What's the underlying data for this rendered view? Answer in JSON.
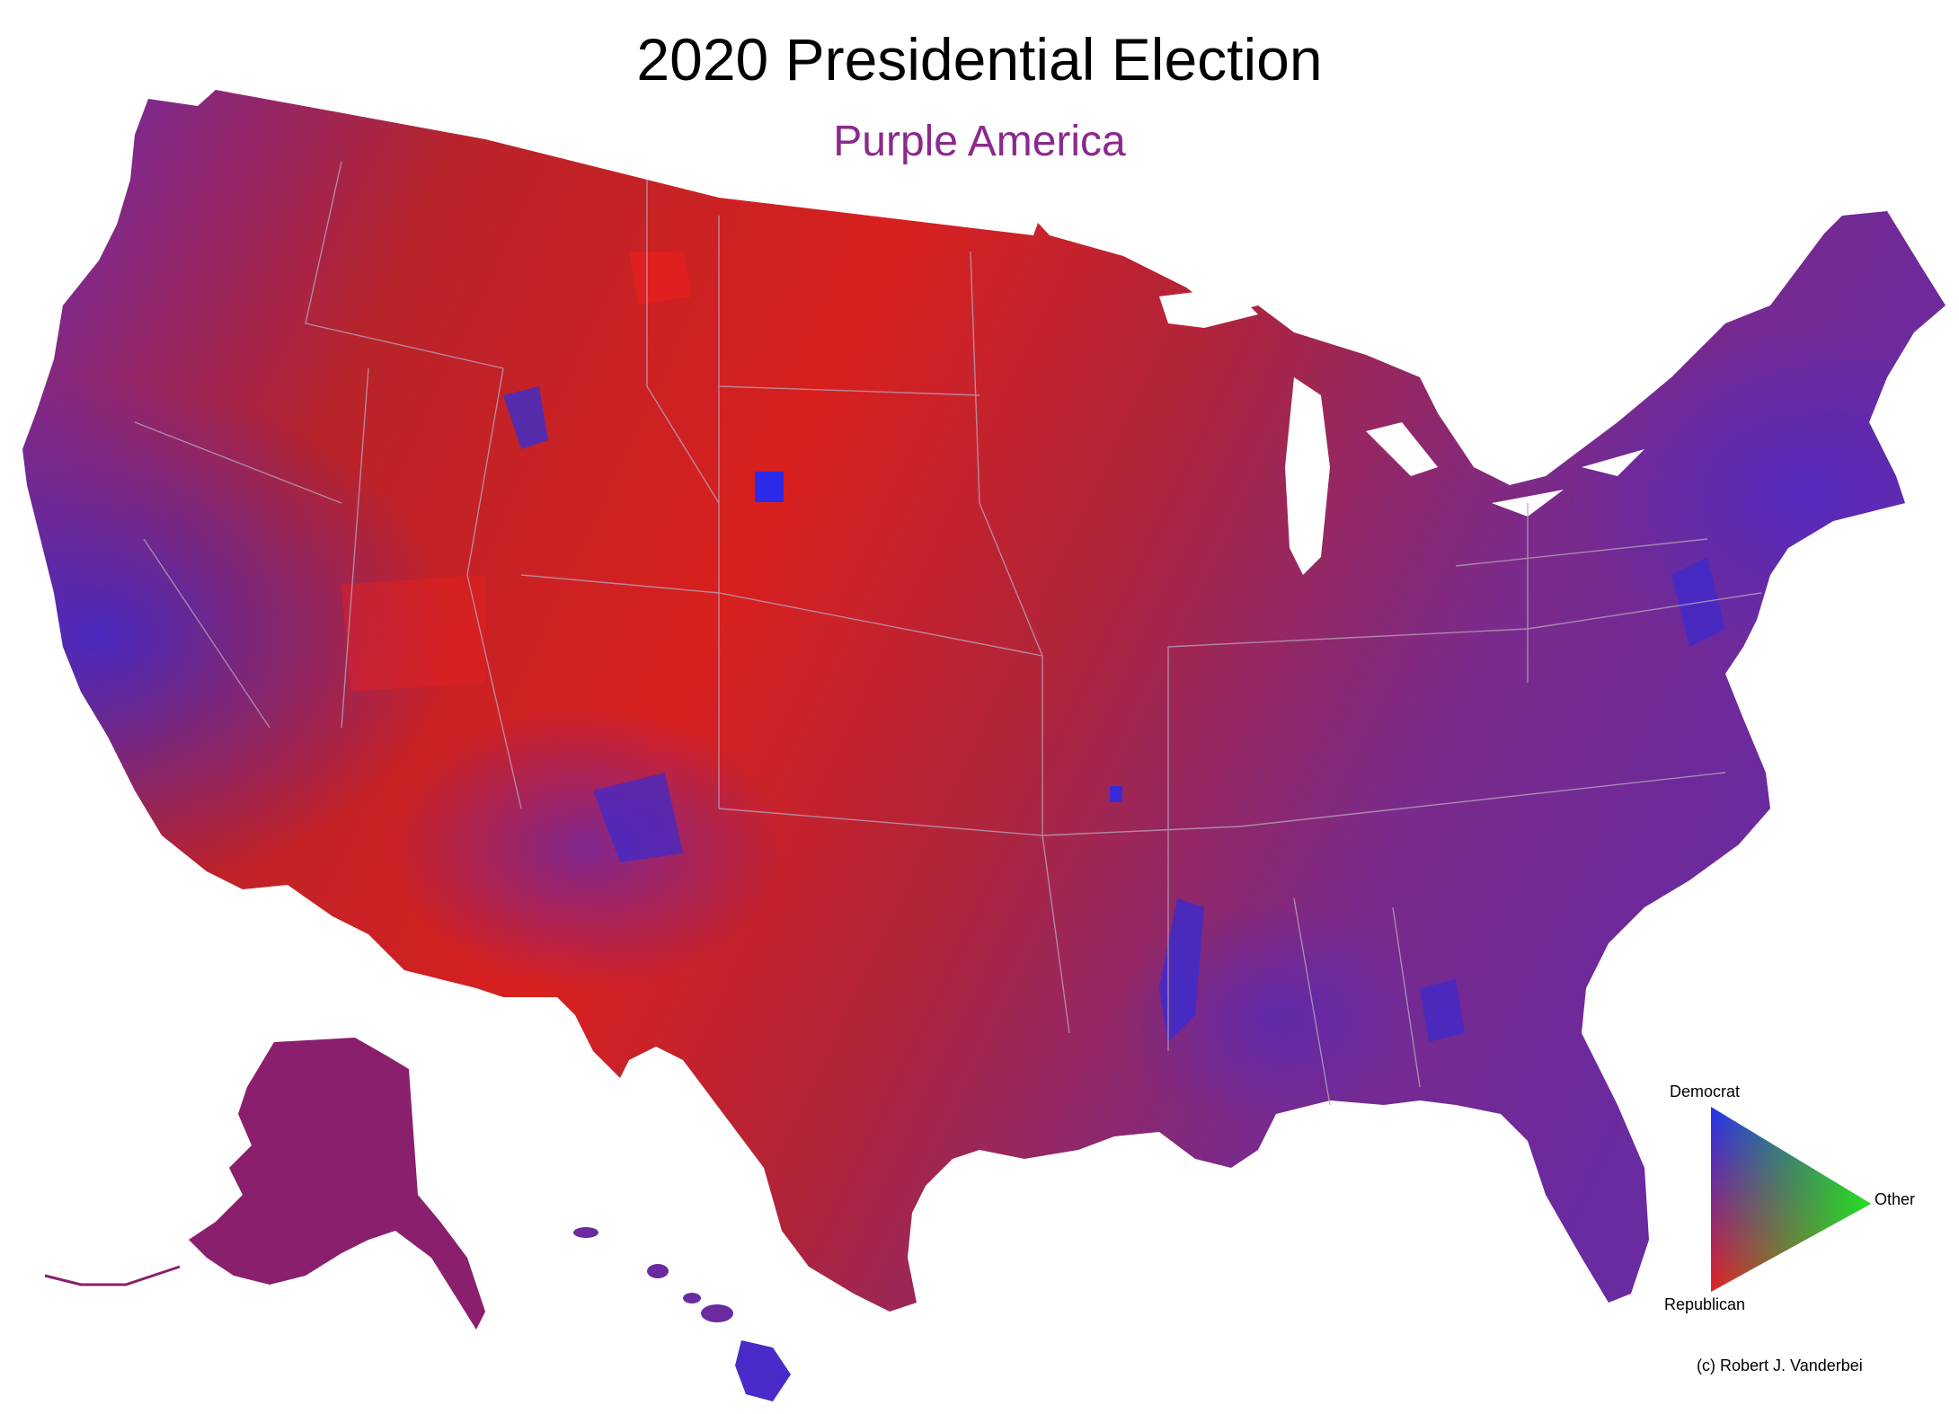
{
  "title": "2020 Presidential Election",
  "subtitle": "Purple America",
  "colors": {
    "democrat": "#2233ee",
    "republican": "#e12222",
    "other": "#22e022",
    "purple": "#7a2a8a",
    "subtitle": "#8b2a8b",
    "state_border": "#b8a0b8"
  },
  "legend": {
    "democrat_label": "Democrat",
    "other_label": "Other",
    "republican_label": "Republican"
  },
  "copyright": "(c) Robert J. Vanderbei"
}
